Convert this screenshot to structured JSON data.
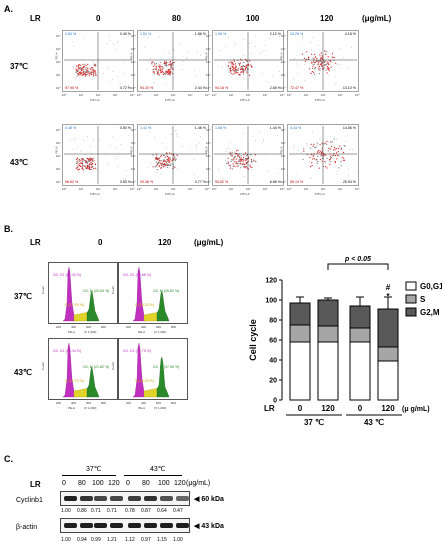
{
  "panelA": {
    "label": "A.",
    "lr_label": "LR",
    "unit": "(μg/mL)",
    "doses": [
      "0",
      "80",
      "100",
      "120"
    ],
    "rows": [
      {
        "temp": "37℃",
        "plots": [
          {
            "ul": "0.84 %",
            "ur": "0.49 %",
            "ll": "97.95 %",
            "lr": "0.72 %"
          },
          {
            "ul": "1.51 %",
            "ur": "1.86 %",
            "ll": "94.20 %",
            "lr": "2.44 %"
          },
          {
            "ul": "1.06 %",
            "ur": "2.12 %",
            "ll": "94.18 %",
            "lr": "2.65 %"
          },
          {
            "ul": "10.25 %",
            "ur": "4.18 %",
            "ll": "72.47 %",
            "lr": "13.10 %"
          }
        ]
      },
      {
        "temp": "43℃",
        "plots": [
          {
            "ul": "0.38 %",
            "ur": "0.50 %",
            "ll": "98.62 %",
            "lr": "0.50 %"
          },
          {
            "ul": "1.41 %",
            "ur": "1.46 %",
            "ll": "93.36 %",
            "lr": "3.77 %"
          },
          {
            "ul": "1.08 %",
            "ur": "1.44 %",
            "ll": "90.82 %",
            "lr": "6.66 %"
          },
          {
            "ul": "4.43 %",
            "ur": "14.56 %",
            "ll": "55.13 %",
            "lr": "25.94 %"
          }
        ]
      }
    ],
    "y_axis": "PE-A",
    "x_axis": "FITC-A",
    "ticks": [
      "10⁰",
      "10¹",
      "10²",
      "10³",
      "10⁴"
    ]
  },
  "panelB": {
    "label": "B.",
    "lr_label": "LR",
    "unit": "(μg/mL)",
    "doses": [
      "0",
      "120"
    ],
    "rows": [
      {
        "temp": "37℃",
        "plots": [
          {
            "g0": "G0, G1 (61.43 %)",
            "g2": "G2, M (20.64 %)",
            "s": "S (17.93 %)"
          },
          {
            "g0": "G0, G1 (56.88 %)",
            "g2": "G2, M (26.81 %)",
            "s": "S (16.33 %)"
          }
        ]
      },
      {
        "temp": "43℃",
        "plots": [
          {
            "g0": "G0, G1 (64.44 %)",
            "g2": "G2, M (21.82 %)",
            "s": "S (13.73 %)"
          },
          {
            "g0": "G0, G1 (47.75 %)",
            "g2": "G2, M (37.96 %)",
            "s": "S (14.29 %)"
          }
        ]
      }
    ],
    "y_axis": "Count",
    "x_axis": "PE-A",
    "x_unit": "(X 1,000)",
    "x_ticks": [
      "200",
      "400",
      "600",
      "800"
    ]
  },
  "chart_data": {
    "type": "bar",
    "ylabel": "Cell cycle",
    "ylim": [
      0,
      120
    ],
    "yticks": [
      "0",
      "20",
      "40",
      "60",
      "80",
      "100",
      "120"
    ],
    "categories": [
      "0",
      "120",
      "0",
      "120"
    ],
    "group_labels": [
      "37 ℃",
      "43 ℃"
    ],
    "lr_label": "LR",
    "unit": "(μ g/mL)",
    "significance": "p < 0.05",
    "markers": [
      "#",
      "*"
    ],
    "legend": [
      "G0,G1",
      "S",
      "G2,M"
    ],
    "legend_colors": [
      "#ffffff",
      "#a6a6a6",
      "#595959"
    ],
    "series": [
      {
        "name": "G0,G1",
        "values": [
          58,
          58,
          58,
          39
        ]
      },
      {
        "name": "S",
        "values": [
          17,
          16,
          14,
          14
        ]
      },
      {
        "name": "G2,M",
        "values": [
          22,
          26,
          22,
          38
        ]
      }
    ],
    "errors": [
      6,
      2,
      9,
      12
    ]
  },
  "panelC": {
    "label": "C.",
    "lr_label": "LR",
    "unit": "(μg/mL)",
    "temp1": "37℃",
    "temp2": "43℃",
    "doses": [
      "0",
      "80",
      "100",
      "120",
      "0",
      "80",
      "100",
      "120"
    ],
    "protein1": "Cyclinb1",
    "kda1": "◀ 60 kDa",
    "values1": [
      "1.00",
      "0.86",
      "0.71",
      "0.71",
      "0.78",
      "0.87",
      "0.64",
      "0.47"
    ],
    "protein2": "β-actin",
    "kda2": "◀ 43 kDa",
    "values2": [
      "1.00",
      "0.94",
      "0.99",
      "1.21",
      "1.12",
      "0.97",
      "1.15",
      "1.00"
    ]
  }
}
